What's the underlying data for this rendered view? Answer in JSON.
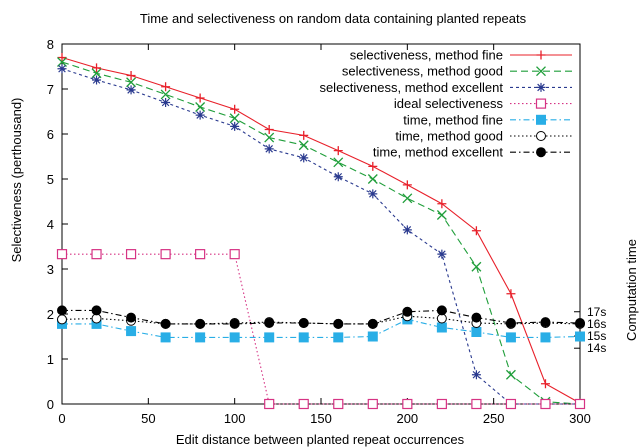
{
  "chart_data": {
    "type": "line",
    "title": "Time and selectiveness on random data containing planted repeats",
    "xlabel": "Edit distance between planted repeat occurrences",
    "ylabel": "Selectiveness (perthousand)",
    "y2label": "Computation time",
    "xlim": [
      0,
      300
    ],
    "ylim": [
      0,
      8
    ],
    "xticks": [
      "0",
      "50",
      "100",
      "150",
      "200",
      "250",
      "300"
    ],
    "yticks": [
      "0",
      "1",
      "2",
      "3",
      "4",
      "5",
      "6",
      "7",
      "8"
    ],
    "y2ticks": [
      {
        "label": "17s",
        "y": 2.05
      },
      {
        "label": "16s",
        "y": 1.78
      },
      {
        "label": "15s",
        "y": 1.51
      },
      {
        "label": "14s",
        "y": 1.24
      }
    ],
    "legend_position": "top-right",
    "grid": false,
    "series": [
      {
        "name": "selectiveness, method fine",
        "color": "#e8202a",
        "marker": "plus",
        "dash": "solid",
        "x": [
          0,
          20,
          40,
          60,
          80,
          100,
          120,
          140,
          160,
          180,
          200,
          220,
          240,
          260,
          280,
          300
        ],
        "y": [
          7.7,
          7.47,
          7.3,
          7.05,
          6.8,
          6.55,
          6.1,
          5.97,
          5.63,
          5.28,
          4.87,
          4.45,
          3.85,
          2.45,
          0.45,
          0.02
        ]
      },
      {
        "name": "selectiveness, method good",
        "color": "#1f9e3a",
        "marker": "x",
        "dash": "long",
        "x": [
          0,
          20,
          40,
          60,
          80,
          100,
          120,
          140,
          160,
          180,
          200,
          220,
          240,
          260,
          280,
          300
        ],
        "y": [
          7.6,
          7.35,
          7.15,
          6.88,
          6.6,
          6.35,
          5.92,
          5.75,
          5.37,
          5.0,
          4.57,
          4.2,
          3.05,
          0.65,
          0.05,
          0.0
        ]
      },
      {
        "name": "selectiveness, method excellent",
        "color": "#2a3a8f",
        "marker": "star",
        "dash": "short",
        "x": [
          0,
          20,
          40,
          60,
          80,
          100,
          120,
          140,
          160,
          180,
          200,
          220,
          240,
          260,
          280,
          300
        ],
        "y": [
          7.45,
          7.2,
          6.98,
          6.7,
          6.42,
          6.17,
          5.67,
          5.47,
          5.05,
          4.67,
          3.87,
          3.33,
          0.65,
          0.0,
          0.0,
          0.0
        ]
      },
      {
        "name": "ideal selectiveness",
        "color": "#d63384",
        "marker": "square-open",
        "dash": "dot",
        "x": [
          0,
          20,
          40,
          60,
          80,
          100,
          120,
          140,
          160,
          180,
          200,
          220,
          240,
          260,
          280,
          300
        ],
        "y": [
          3.33,
          3.33,
          3.33,
          3.33,
          3.33,
          3.33,
          0,
          0,
          0,
          0,
          0,
          0,
          0,
          0,
          0,
          0
        ]
      },
      {
        "name": "time, method fine",
        "color": "#29aee6",
        "marker": "square-filled",
        "dash": "dashdot",
        "x": [
          0,
          20,
          40,
          60,
          80,
          100,
          120,
          140,
          160,
          180,
          200,
          220,
          240,
          260,
          280,
          300
        ],
        "y": [
          1.78,
          1.78,
          1.62,
          1.48,
          1.48,
          1.48,
          1.48,
          1.48,
          1.48,
          1.5,
          1.88,
          1.7,
          1.6,
          1.48,
          1.48,
          1.5
        ]
      },
      {
        "name": "time, method good",
        "color": "#000000",
        "marker": "circle-open",
        "dash": "dot",
        "x": [
          0,
          20,
          40,
          60,
          80,
          100,
          120,
          140,
          160,
          180,
          200,
          220,
          240,
          260,
          280,
          300
        ],
        "y": [
          1.88,
          1.9,
          1.85,
          1.78,
          1.78,
          1.8,
          1.82,
          1.8,
          1.78,
          1.78,
          1.95,
          1.9,
          1.8,
          1.78,
          1.8,
          1.78
        ]
      },
      {
        "name": "time, method excellent",
        "color": "#000000",
        "marker": "circle-filled",
        "dash": "dashdot",
        "x": [
          0,
          20,
          40,
          60,
          80,
          100,
          120,
          140,
          160,
          180,
          200,
          220,
          240,
          260,
          280,
          300
        ],
        "y": [
          2.08,
          2.08,
          1.92,
          1.78,
          1.78,
          1.78,
          1.8,
          1.8,
          1.78,
          1.78,
          2.05,
          2.08,
          1.92,
          1.8,
          1.82,
          1.8
        ]
      }
    ]
  }
}
